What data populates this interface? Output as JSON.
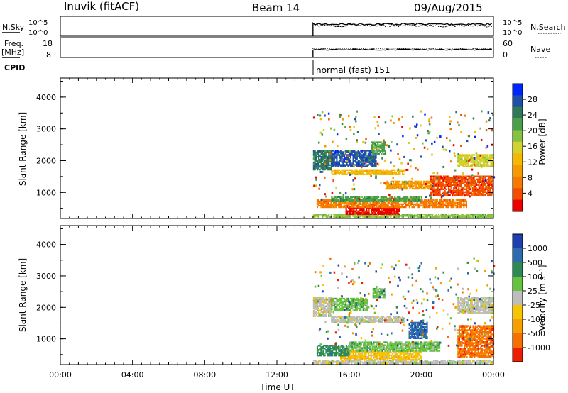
{
  "header": {
    "station": "Inuvik (fitACF)",
    "beam": "Beam 14",
    "date": "09/Aug/2015"
  },
  "labels": {
    "nsky": "N.Sky",
    "freq": "Freq.",
    "freq_unit": "[MHz]",
    "cpid": "CPID",
    "nsearch": "N.Search",
    "nave": "Nave",
    "nsky_ticks": [
      "10^5",
      "10^0"
    ],
    "nsearch_ticks": [
      "10^5",
      "10^0"
    ],
    "freq_ticks": [
      "18",
      "8"
    ],
    "nave_ticks": [
      "60",
      "0"
    ],
    "cpid_text": "normal (fast) 151"
  },
  "colorbars": {
    "power": {
      "title": "Power [dB]",
      "ticks": [
        "28",
        "24",
        "20",
        "16",
        "12",
        "8",
        "4"
      ],
      "colors": [
        "#0026ff",
        "#1f4fa8",
        "#2f7a55",
        "#4aa04a",
        "#86c240",
        "#d2d22e",
        "#f5b800",
        "#f59a00",
        "#f57a00",
        "#f24d00",
        "#ed0000"
      ]
    },
    "velocity": {
      "title": "Velocity [m s⁻¹]",
      "ticks": [
        "1000",
        "500",
        "100",
        "25",
        "-25",
        "-100",
        "-500",
        "-1000"
      ],
      "colors": [
        "#1f3fb0",
        "#2d6bb0",
        "#2d8a55",
        "#66c33d",
        "#bdbdbd",
        "#f7c400",
        "#f5a000",
        "#f57000",
        "#ee1c00"
      ]
    }
  },
  "chart_data": [
    {
      "type": "heatmap",
      "panel": "power",
      "xlabel": "",
      "ylabel": "Slant Range [km]",
      "y_ticks": [
        "1000",
        "2000",
        "3000",
        "4000"
      ],
      "ylim": [
        180,
        4600
      ],
      "xlim_hours": [
        0,
        24
      ],
      "data_start_hour": 14.0,
      "bands": [
        {
          "range_km": [
            200,
            320
          ],
          "hours": [
            14.0,
            24.0
          ],
          "color_index": 4
        },
        {
          "range_km": [
            300,
            560
          ],
          "hours": [
            15.8,
            18.8
          ],
          "color_index": 10
        },
        {
          "range_km": [
            520,
            760
          ],
          "hours": [
            14.2,
            22.5
          ],
          "color_index": 8
        },
        {
          "range_km": [
            700,
            860
          ],
          "hours": [
            15.0,
            20.0
          ],
          "color_index": 3
        },
        {
          "range_km": [
            900,
            1500
          ],
          "hours": [
            20.5,
            24.0
          ],
          "color_index": 9
        },
        {
          "range_km": [
            1100,
            1350
          ],
          "hours": [
            18.0,
            20.5
          ],
          "color_index": 7
        },
        {
          "range_km": [
            1550,
            1700
          ],
          "hours": [
            15.0,
            19.0
          ],
          "color_index": 6
        },
        {
          "range_km": [
            1700,
            2300
          ],
          "hours": [
            14.0,
            15.0
          ],
          "color_index": 2
        },
        {
          "range_km": [
            1800,
            2300
          ],
          "hours": [
            15.0,
            17.5
          ],
          "color_index": 1
        },
        {
          "range_km": [
            1800,
            2200
          ],
          "hours": [
            22.0,
            24.0
          ],
          "color_index": 5
        },
        {
          "range_km": [
            2200,
            2600
          ],
          "hours": [
            17.2,
            18.0
          ],
          "color_index": 3
        }
      ]
    },
    {
      "type": "heatmap",
      "panel": "velocity",
      "xlabel": "Time UT",
      "ylabel": "Slant Range [km]",
      "y_ticks": [
        "1000",
        "2000",
        "3000",
        "4000"
      ],
      "ylim": [
        180,
        4600
      ],
      "xlim_hours": [
        0,
        24
      ],
      "x_ticks": [
        "00:00",
        "04:00",
        "08:00",
        "12:00",
        "16:00",
        "20:00",
        "00:00"
      ],
      "data_start_hour": 14.0,
      "bands": [
        {
          "range_km": [
            200,
            330
          ],
          "hours": [
            14.0,
            24.0
          ],
          "color_index": 4
        },
        {
          "range_km": [
            320,
            600
          ],
          "hours": [
            15.5,
            20.0
          ],
          "color_index": 5
        },
        {
          "range_km": [
            450,
            800
          ],
          "hours": [
            14.2,
            16.0
          ],
          "color_index": 2
        },
        {
          "range_km": [
            600,
            900
          ],
          "hours": [
            16.0,
            21.0
          ],
          "color_index": 3
        },
        {
          "range_km": [
            400,
            1400
          ],
          "hours": [
            22.0,
            24.0
          ],
          "color_index": 7
        },
        {
          "range_km": [
            1000,
            1500
          ],
          "hours": [
            19.3,
            20.3
          ],
          "color_index": 1
        },
        {
          "range_km": [
            1500,
            1700
          ],
          "hours": [
            15.0,
            19.0
          ],
          "color_index": 4
        },
        {
          "range_km": [
            1700,
            2300
          ],
          "hours": [
            14.0,
            15.0
          ],
          "color_index": 4
        },
        {
          "range_km": [
            1900,
            2300
          ],
          "hours": [
            15.0,
            17.0
          ],
          "color_index": 3
        },
        {
          "range_km": [
            1800,
            2300
          ],
          "hours": [
            22.0,
            24.0
          ],
          "color_index": 4
        },
        {
          "range_km": [
            2300,
            2600
          ],
          "hours": [
            17.3,
            18.0
          ],
          "color_index": 3
        }
      ]
    }
  ]
}
